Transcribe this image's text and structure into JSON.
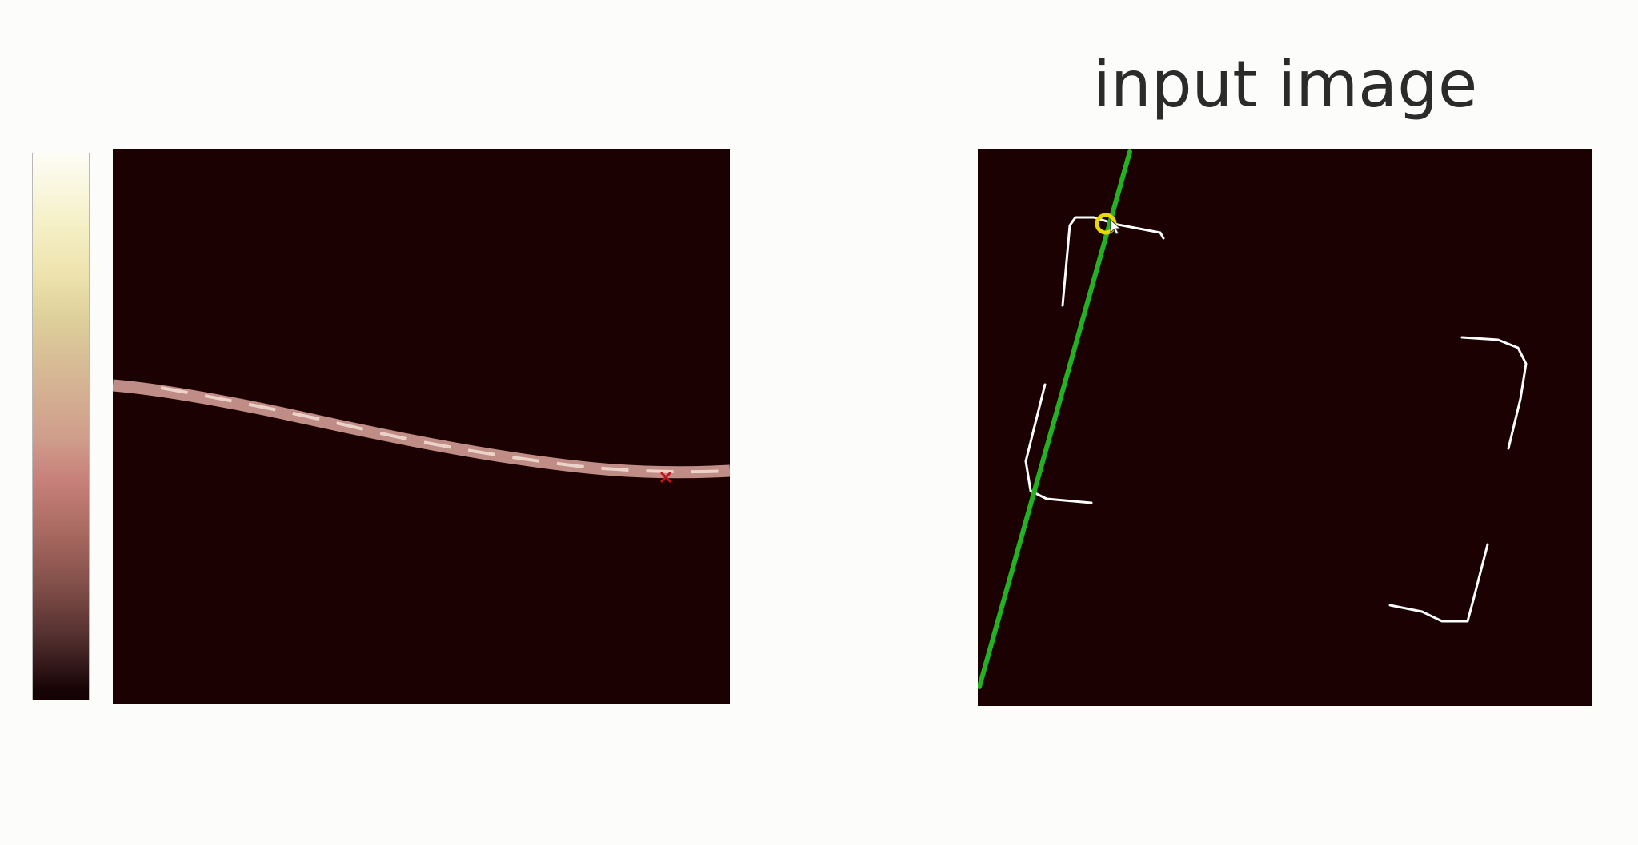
{
  "input_panel": {
    "title": "input image"
  },
  "colors": {
    "background": "#fcfcfa",
    "panel_background": "#1b0102",
    "hough_curve": "#d7b1a6",
    "edge_pixels": "#ffffff",
    "detected_line": "#22b222",
    "cursor_highlight": "#e8d800",
    "peak_marker": "#c0141e"
  },
  "icons": {
    "colorbar": "colormap-gradient",
    "peak_marker": "cross-marker-icon",
    "cursor": "mouse-cursor-icon"
  }
}
